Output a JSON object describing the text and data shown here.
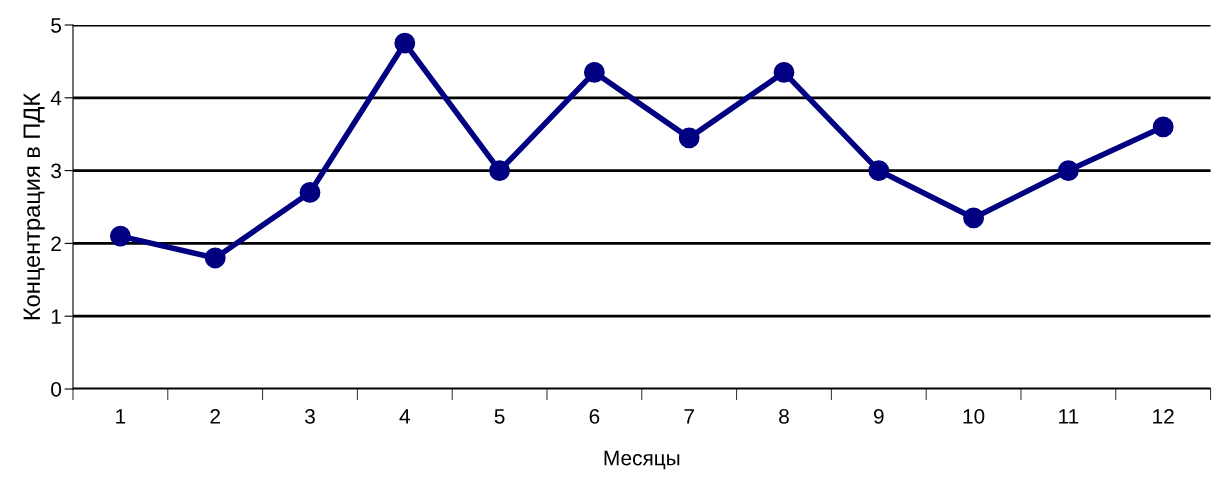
{
  "chart_data": {
    "type": "line",
    "xlabel": "Месяцы",
    "ylabel": "Концентрация в ПДК",
    "categories": [
      "1",
      "2",
      "3",
      "4",
      "5",
      "6",
      "7",
      "8",
      "9",
      "10",
      "11",
      "12"
    ],
    "series": [
      {
        "color": "#000080",
        "values": [
          2.1,
          1.8,
          2.7,
          4.75,
          3.0,
          4.35,
          3.45,
          4.35,
          3.0,
          2.35,
          3.0,
          3.6
        ]
      }
    ],
    "ylim": [
      0,
      5
    ],
    "yticks": [
      0,
      1,
      2,
      3,
      4,
      5
    ],
    "grid": "y",
    "marker": "circle",
    "line_style": "solid",
    "legend": false
  }
}
